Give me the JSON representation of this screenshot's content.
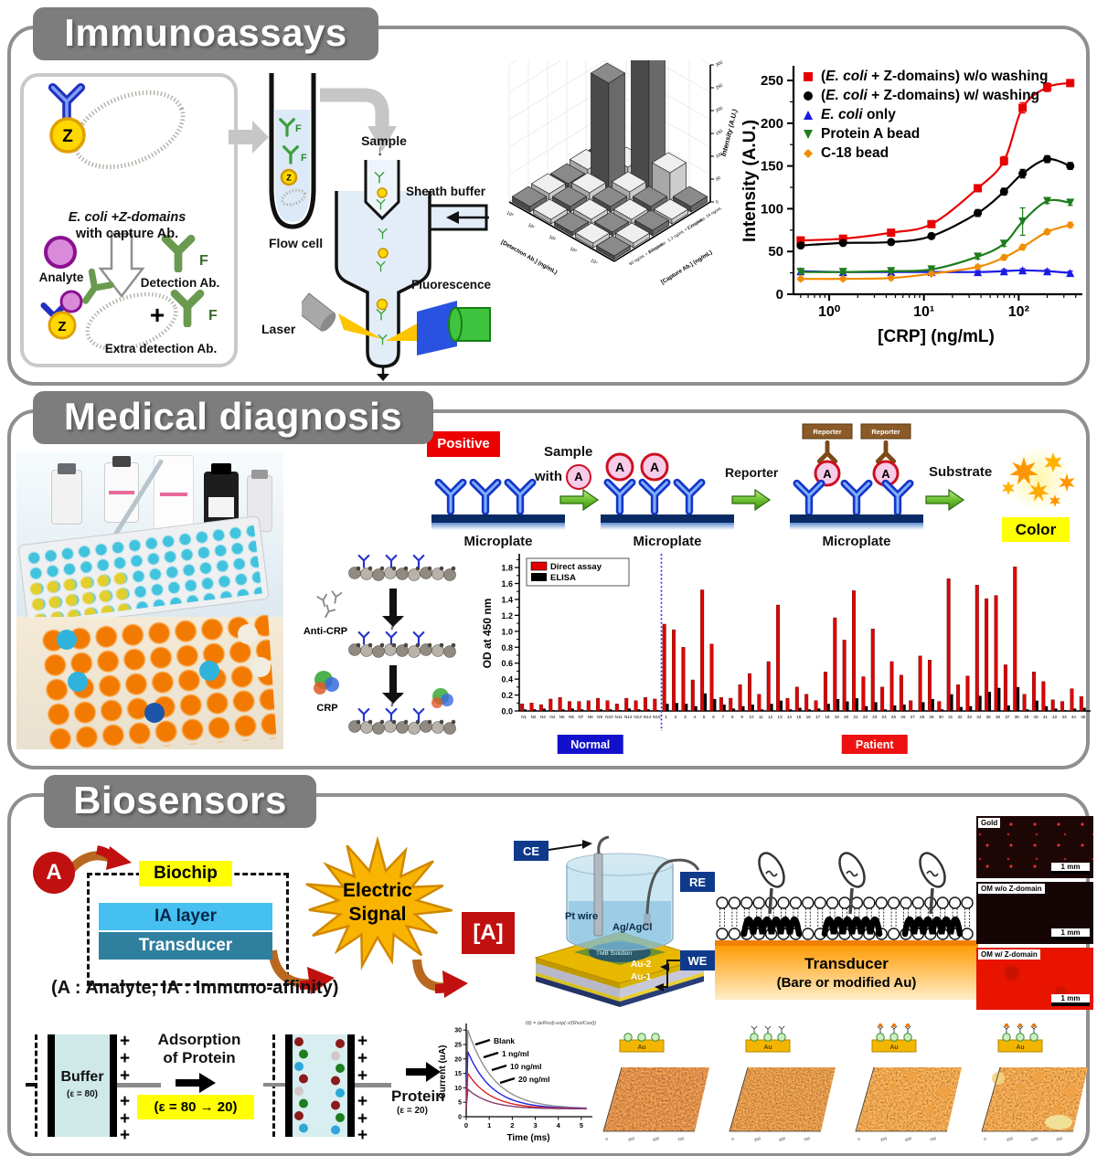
{
  "immuno": {
    "title": "Immunoassays",
    "box": {
      "l1": "E. coli +Z-domains",
      "l2": "with capture Ab.",
      "analyte": "Analyte",
      "detection": "Detection Ab.",
      "extra": "Extra detection Ab.",
      "plus": "+",
      "z": "Z",
      "f": "F"
    },
    "flow": {
      "sample": "Sample",
      "down": "↓",
      "sheath": "Sheath buffer",
      "cell": "Flow cell",
      "laser": "Laser",
      "fluor": "Fluorescence"
    }
  },
  "medical": {
    "title": "Medical diagnosis",
    "positive": "Positive",
    "sample_l1": "Sample",
    "sample_l2": "with",
    "a": "A",
    "microplate": "Microplate",
    "reporter": "Reporter",
    "substrate": "Substrate",
    "color": "Color",
    "anti_crp": "Anti-CRP",
    "crp": "CRP"
  },
  "bio": {
    "title": "Biosensors",
    "a": "A",
    "biochip": "Biochip",
    "ia": "IA layer",
    "transducer": "Transducer",
    "electric_l1": "Electric",
    "electric_l2": "Signal",
    "abracket": "[A]",
    "caption": "(A : Analyte, IA : Immuno-affinity)",
    "ce": "CE",
    "re": "RE",
    "we": "WE",
    "pt": "Pt wire",
    "agcl": "Ag/AgCl",
    "tmb": "TMB Solution",
    "au2": "Au-2",
    "au1": "Au-1",
    "trans_l1": "Transducer",
    "trans_l2": "(Bare or modified Au)",
    "fluor_labels": [
      "Gold",
      "OM w/o Z-domain",
      "OM w/ Z-domain"
    ],
    "scale": "1 mm",
    "buffer": "Buffer",
    "eps80": "(ε = 80)",
    "ads_l1": "Adsorption",
    "ads_l2": "of Protein",
    "eps_change": "(ε = 80 → 20)",
    "protein": "Protein",
    "eps20": "(ε = 20)",
    "au": "Au",
    "afm_ticks": [
      "0",
      "250",
      "500",
      "750"
    ]
  },
  "chart_data": [
    {
      "id": "bar3d",
      "type": "bar",
      "projection": "3d",
      "xlabel": "[Detection Ab.] (ng/mL)",
      "ylabel": "[Capture Ab.] (ng/mL)",
      "zlabel": "Intensity (A.U.)",
      "detection_ticks": [
        "10⁰",
        "10¹",
        "10²",
        "10³",
        "10⁴"
      ],
      "capture_categories": [
        "60 ng/mL + Z-domains",
        "60 ng/mL",
        "1.2 ng/mL + Z-domains",
        "1.2 ng/mL",
        "24 ng/mL"
      ],
      "z_ticks": [
        0,
        50,
        100,
        150,
        200,
        250,
        300
      ],
      "zlim": [
        0,
        300
      ],
      "values": [
        [
          12,
          10,
          8,
          10,
          8
        ],
        [
          14,
          12,
          10,
          8,
          10
        ],
        [
          10,
          16,
          12,
          10,
          12
        ],
        [
          15,
          230,
          18,
          12,
          10
        ],
        [
          10,
          20,
          305,
          60,
          12
        ]
      ]
    },
    {
      "id": "crp",
      "type": "line",
      "xscale": "log",
      "xlabel": "[CRP] (ng/mL)",
      "ylabel": "Intensity (A.U.)",
      "x": [
        0.5,
        1.4,
        4.5,
        12,
        37,
        70,
        110,
        200,
        350
      ],
      "xticks": [
        1,
        10,
        100
      ],
      "xtick_labels": [
        "10⁰",
        "10¹",
        "10²"
      ],
      "yticks": [
        0,
        50,
        100,
        150,
        200,
        250
      ],
      "ylim": [
        0,
        265
      ],
      "legend_position": "top-left",
      "series": [
        {
          "name": "(E. coli + Z-domains) w/o washing",
          "marker": "square",
          "color": "#e60000",
          "values": [
            63,
            65,
            72,
            82,
            124,
            156,
            218,
            242,
            247
          ],
          "errs": [
            3,
            3,
            3,
            3,
            4,
            5,
            6,
            5,
            4
          ]
        },
        {
          "name": "(E. coli + Z-domains) w/ washing",
          "marker": "circle",
          "color": "#000000",
          "values": [
            57,
            60,
            61,
            68,
            95,
            120,
            141,
            158,
            150
          ],
          "errs": [
            3,
            3,
            3,
            3,
            4,
            4,
            5,
            4,
            4
          ]
        },
        {
          "name": "E. coli only",
          "marker": "triangle-up",
          "color": "#1a1ae6",
          "values": [
            27,
            26,
            26,
            26,
            26,
            27,
            28,
            27,
            25
          ],
          "errs": [
            2,
            2,
            2,
            2,
            2,
            2,
            2,
            2,
            2
          ]
        },
        {
          "name": "Protein A bead",
          "marker": "triangle-down",
          "color": "#1e7d1e",
          "values": [
            26,
            26,
            27,
            29,
            44,
            59,
            85,
            109,
            107
          ],
          "errs": [
            2,
            2,
            2,
            2,
            3,
            3,
            16,
            3,
            3
          ]
        },
        {
          "name": "C-18 bead",
          "marker": "diamond",
          "color": "#f08c00",
          "values": [
            18,
            18,
            19,
            24,
            32,
            43,
            55,
            73,
            81
          ],
          "errs": [
            2,
            2,
            2,
            2,
            2,
            3,
            3,
            3,
            3
          ]
        }
      ]
    },
    {
      "id": "od",
      "type": "bar",
      "ylabel": "OD at 450 nm",
      "ytick_labels": [
        "0.0",
        "0.2",
        "0.4",
        "0.6",
        "0.8",
        "1.0",
        "1.2",
        "1.4",
        "1.6",
        "1.8"
      ],
      "ylim": [
        0,
        1.95
      ],
      "divider_after": 15,
      "normal_label": "Normal",
      "patient_label": "Patient",
      "categories": [
        "N1",
        "N2",
        "N3",
        "N4",
        "N5",
        "N6",
        "N7",
        "N8",
        "N9",
        "N10",
        "N11",
        "N12",
        "N13",
        "N14",
        "N15",
        "1",
        "2",
        "3",
        "4",
        "5",
        "6",
        "7",
        "8",
        "9",
        "10",
        "11",
        "12",
        "13",
        "14",
        "15",
        "16",
        "17",
        "18",
        "19",
        "20",
        "21",
        "22",
        "23",
        "24",
        "25",
        "26",
        "27",
        "28",
        "29",
        "30",
        "31",
        "32",
        "33",
        "34",
        "35",
        "36",
        "37",
        "38",
        "39",
        "40",
        "41",
        "42",
        "43",
        "44",
        "45"
      ],
      "series": [
        {
          "name": "Direct assay",
          "color": "#e00000",
          "values": [
            0.09,
            0.1,
            0.08,
            0.15,
            0.17,
            0.12,
            0.12,
            0.13,
            0.16,
            0.13,
            0.09,
            0.16,
            0.13,
            0.17,
            0.15,
            1.09,
            1.02,
            0.8,
            0.39,
            1.52,
            0.84,
            0.17,
            0.16,
            0.33,
            0.47,
            0.21,
            0.62,
            1.33,
            0.16,
            0.3,
            0.21,
            0.13,
            0.49,
            1.17,
            0.89,
            1.51,
            0.43,
            1.03,
            0.3,
            0.62,
            0.45,
            0.13,
            0.69,
            0.64,
            0.12,
            1.66,
            0.33,
            0.44,
            1.58,
            1.41,
            1.45,
            0.58,
            1.81,
            0.21,
            0.49,
            0.37,
            0.14,
            0.12,
            0.28,
            0.18
          ]
        },
        {
          "name": "ELISA",
          "color": "#000000",
          "values": [
            0.02,
            0.02,
            0.03,
            0.01,
            0.02,
            0.03,
            0.02,
            0.01,
            0.02,
            0.02,
            0.01,
            0.03,
            0.02,
            0.02,
            0.01,
            0.09,
            0.1,
            0.09,
            0.06,
            0.22,
            0.15,
            0.08,
            0.03,
            0.06,
            0.08,
            0.02,
            0.09,
            0.13,
            0.02,
            0.04,
            0.02,
            0.03,
            0.09,
            0.15,
            0.12,
            0.16,
            0.06,
            0.11,
            0.02,
            0.07,
            0.08,
            0.01,
            0.11,
            0.15,
            0.02,
            0.21,
            0.05,
            0.06,
            0.19,
            0.24,
            0.29,
            0.07,
            0.3,
            0.02,
            0.13,
            0.06,
            0.03,
            0.01,
            0.03,
            0.04
          ]
        }
      ]
    },
    {
      "id": "decay",
      "type": "line",
      "xlabel": "Time (ms)",
      "ylabel": "Current (uA)",
      "xticks": [
        0,
        1,
        2,
        3,
        4,
        5
      ],
      "yticks": [
        0,
        5,
        10,
        15,
        20,
        25,
        30
      ],
      "formula": "I(t) = (a/Rsol)·exp(−t/(RsolCsol))",
      "series": [
        {
          "name": "Blank",
          "color": "#909090",
          "peak": 30,
          "tau": 1.15,
          "baseline": 2.7
        },
        {
          "name": "1 ng/ml",
          "color": "#2222dd",
          "peak": 22.5,
          "tau": 1.05,
          "baseline": 2.7
        },
        {
          "name": "10 ng/ml",
          "color": "#dd2222",
          "peak": 15,
          "tau": 1.0,
          "baseline": 2.7
        },
        {
          "name": "20 ng/ml",
          "color": "#8a3a6a",
          "peak": 9.5,
          "tau": 0.95,
          "baseline": 2.7
        }
      ]
    }
  ]
}
